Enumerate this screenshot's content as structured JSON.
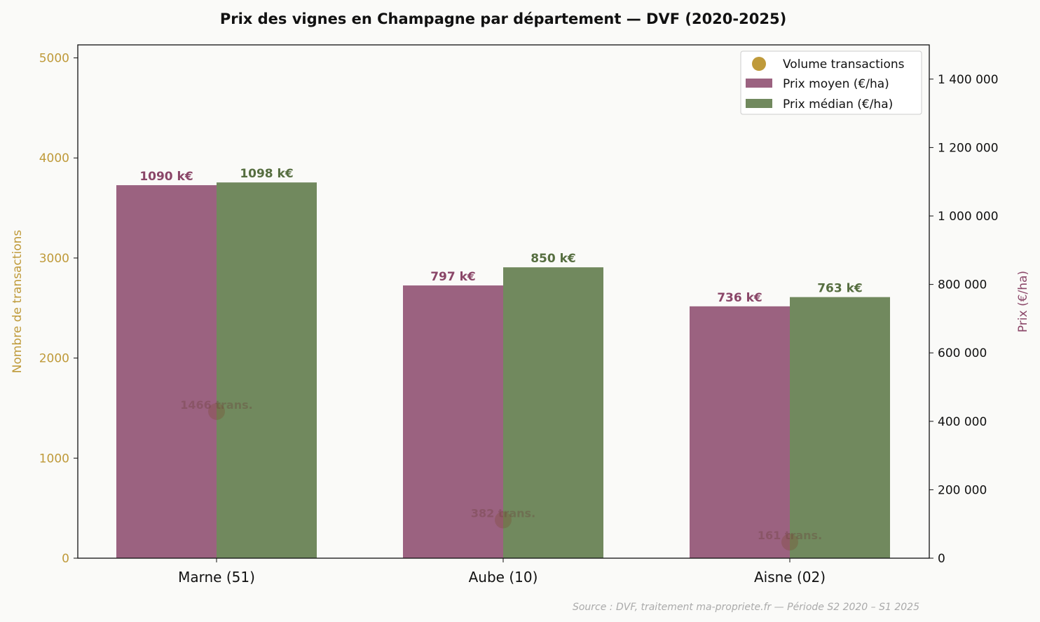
{
  "chart_data": {
    "type": "bar",
    "title": "Prix des vignes en Champagne par département — DVF (2020-2025)",
    "categories": [
      "Marne (51)",
      "Aube (10)",
      "Aisne (02)"
    ],
    "series": [
      {
        "name": "Prix moyen (€/ha)",
        "axis": "right",
        "values": [
          1090000,
          797000,
          736000
        ],
        "labels": [
          "1090 k€",
          "797 k€",
          "736 k€"
        ],
        "color": "#9b6280",
        "label_color": "#8a4668"
      },
      {
        "name": "Prix médian (€/ha)",
        "axis": "right",
        "values": [
          1098000,
          850000,
          763000
        ],
        "labels": [
          "1098 k€",
          "850 k€",
          "763 k€"
        ],
        "color": "#71895e",
        "label_color": "#566e40"
      },
      {
        "name": "Volume transactions",
        "axis": "left",
        "type": "scatter",
        "values": [
          1466,
          382,
          161
        ],
        "labels": [
          "1466 trans.",
          "382 trans.",
          "161 trans."
        ],
        "color": "#bf9a3a"
      }
    ],
    "ylabel_left": "Nombre de transactions",
    "ylabel_right": "Prix (€/ha)",
    "ylim_left": [
      0,
      5130
    ],
    "ylim_right": [
      0,
      1500000
    ],
    "yticks_left": [
      "0",
      "1000",
      "2000",
      "3000",
      "4000",
      "5000"
    ],
    "yticks_right": [
      "0",
      "200 000",
      "400 000",
      "600 000",
      "800 000",
      "1 000 000",
      "1 200 000",
      "1 400 000"
    ],
    "legend": "top-right",
    "grid": false,
    "source": "Source : DVF, traitement ma-propriete.fr — Période S2 2020 – S1 2025"
  }
}
